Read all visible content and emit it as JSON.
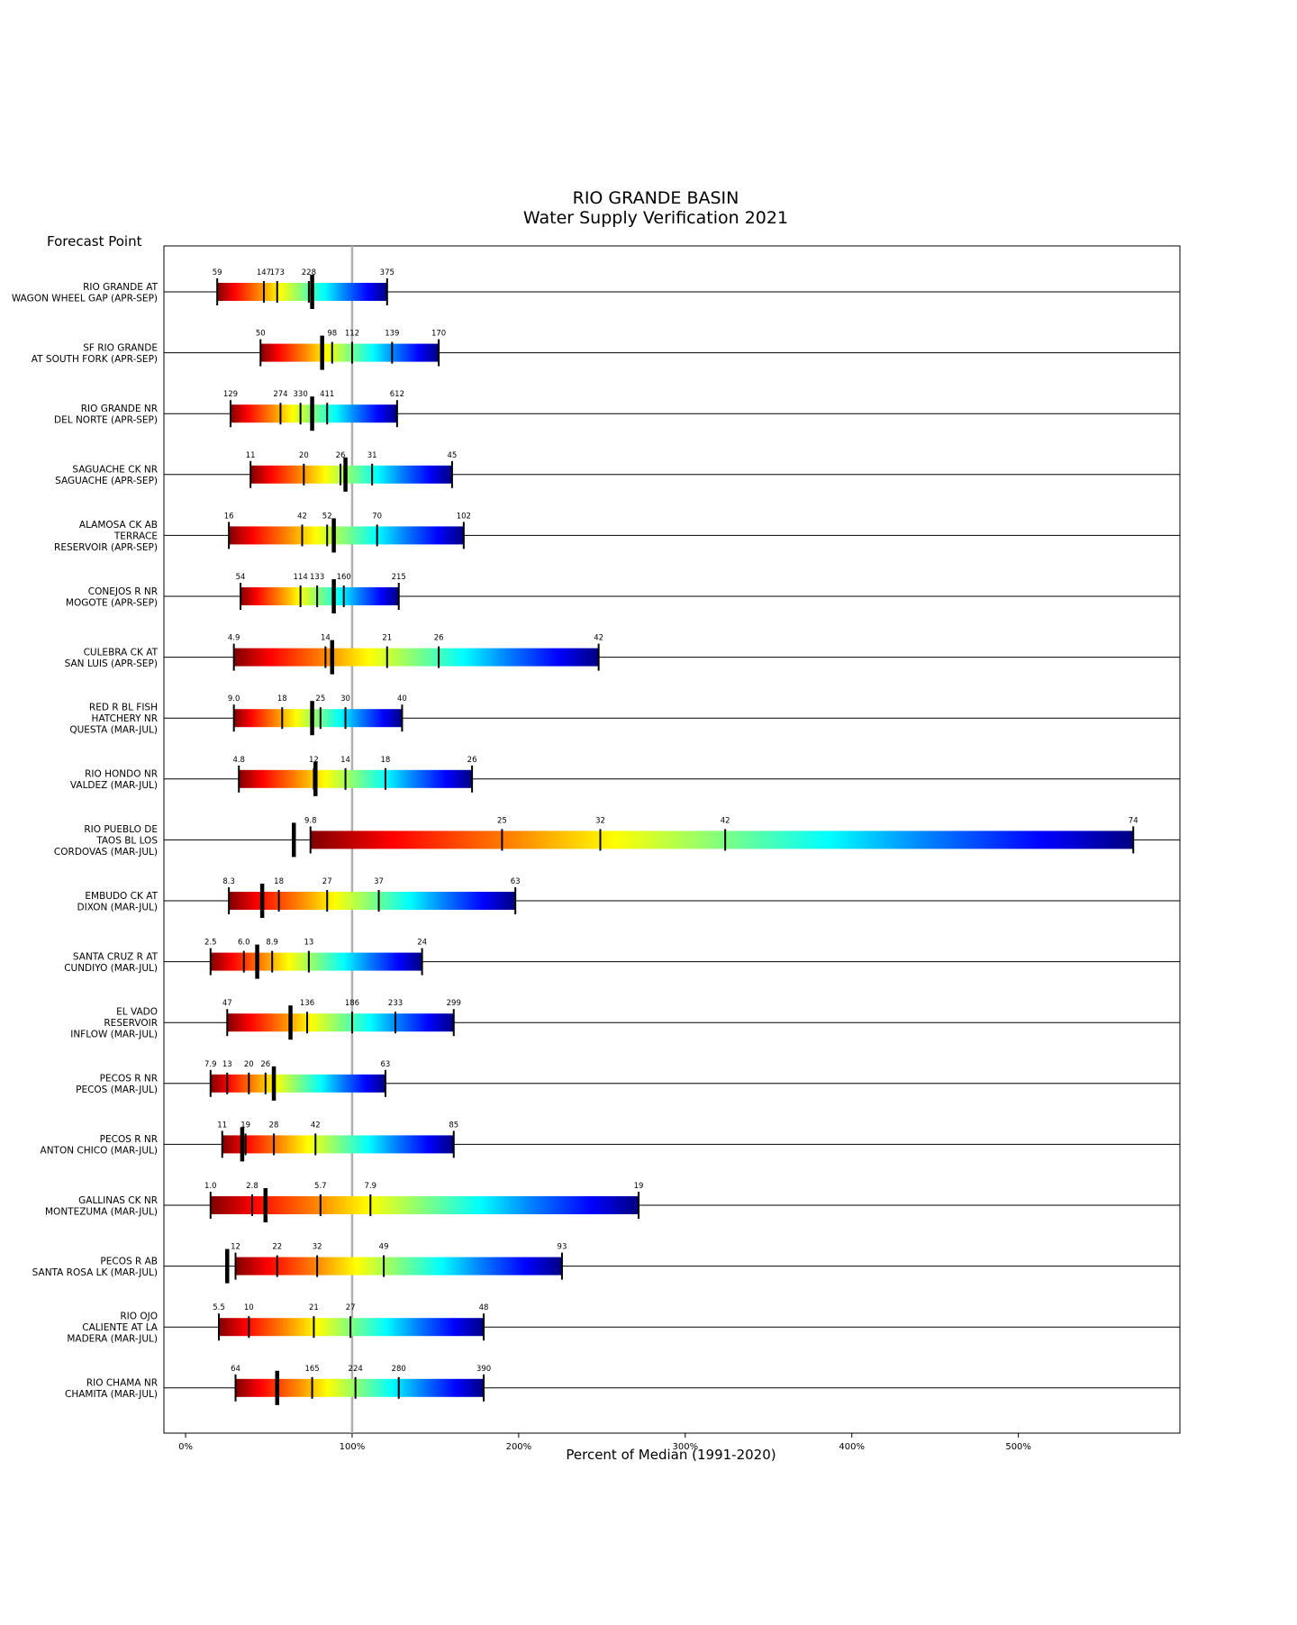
{
  "chart_data": {
    "type": "bar",
    "title": "RIO GRANDE BASIN",
    "subtitle": "Water Supply Verification 2021",
    "xlabel": "Percent of Median (1991-2020)",
    "ylabel": "Forecast Point",
    "xlim": [
      -13,
      597
    ],
    "xticks": [
      0,
      100,
      200,
      300,
      400,
      500
    ],
    "xtick_labels": [
      "0%",
      "100%",
      "200%",
      "300%",
      "400%",
      "500%"
    ],
    "median_line": 100,
    "grid": false,
    "colormap": "jet",
    "series": [
      {
        "labels": [
          "RIO GRANDE AT",
          "WAGON WHEEL GAP (APR-SEP)"
        ],
        "ticks": [
          19,
          47,
          55,
          74,
          121
        ],
        "tick_labels": [
          "59",
          "147",
          "173",
          "228",
          "375"
        ],
        "observed": 76
      },
      {
        "labels": [
          "SF RIO GRANDE",
          "AT SOUTH FORK (APR-SEP)"
        ],
        "ticks": [
          45,
          88,
          100,
          124,
          152
        ],
        "tick_labels": [
          "50",
          "98",
          "112",
          "139",
          "170"
        ],
        "observed": 82
      },
      {
        "labels": [
          "RIO GRANDE NR",
          "DEL NORTE (APR-SEP)"
        ],
        "ticks": [
          27,
          57,
          69,
          85,
          127
        ],
        "tick_labels": [
          "129",
          "274",
          "330",
          "411",
          "612"
        ],
        "observed": 76
      },
      {
        "labels": [
          "SAGUACHE CK NR",
          "SAGUACHE (APR-SEP)"
        ],
        "ticks": [
          39,
          71,
          93,
          112,
          160
        ],
        "tick_labels": [
          "11",
          "20",
          "26",
          "31",
          "45"
        ],
        "observed": 96
      },
      {
        "labels": [
          "ALAMOSA CK AB",
          "TERRACE",
          "RESERVOIR (APR-SEP)"
        ],
        "ticks": [
          26,
          70,
          85,
          115,
          167
        ],
        "tick_labels": [
          "16",
          "42",
          "52",
          "70",
          "102"
        ],
        "observed": 89
      },
      {
        "labels": [
          "CONEJOS R NR",
          "MOGOTE (APR-SEP)"
        ],
        "ticks": [
          33,
          69,
          79,
          95,
          128
        ],
        "tick_labels": [
          "54",
          "114",
          "133",
          "160",
          "215"
        ],
        "observed": 89
      },
      {
        "labels": [
          "CULEBRA CK AT",
          "SAN LUIS (APR-SEP)"
        ],
        "ticks": [
          29,
          84,
          121,
          152,
          248
        ],
        "tick_labels": [
          "4.9",
          "14",
          "21",
          "26",
          "42"
        ],
        "observed": 88
      },
      {
        "labels": [
          "RED R BL FISH",
          "HATCHERY NR",
          "QUESTA (MAR-JUL)"
        ],
        "ticks": [
          29,
          58,
          81,
          96,
          130
        ],
        "tick_labels": [
          "9.0",
          "18",
          "25",
          "30",
          "40"
        ],
        "observed": 76
      },
      {
        "labels": [
          "RIO HONDO NR",
          "VALDEZ (MAR-JUL)"
        ],
        "ticks": [
          32,
          77,
          96,
          120,
          172
        ],
        "tick_labels": [
          "4.8",
          "12",
          "14",
          "18",
          "26"
        ],
        "observed": 78
      },
      {
        "labels": [
          "RIO PUEBLO DE",
          "TAOS BL LOS",
          "CORDOVAS (MAR-JUL)"
        ],
        "ticks": [
          75,
          190,
          249,
          324,
          569
        ],
        "tick_labels": [
          "9.8",
          "25",
          "32",
          "42",
          "74"
        ],
        "observed": 65
      },
      {
        "labels": [
          "EMBUDO CK AT",
          "DIXON (MAR-JUL)"
        ],
        "ticks": [
          26,
          56,
          85,
          116,
          198
        ],
        "tick_labels": [
          "8.3",
          "18",
          "27",
          "37",
          "63"
        ],
        "observed": 46
      },
      {
        "labels": [
          "SANTA CRUZ R AT",
          "CUNDIYO (MAR-JUL)"
        ],
        "ticks": [
          15,
          35,
          52,
          74,
          142
        ],
        "tick_labels": [
          "2.5",
          "6.0",
          "8.9",
          "13",
          "24"
        ],
        "observed": 43
      },
      {
        "labels": [
          "EL VADO",
          "RESERVOIR",
          "INFLOW (MAR-JUL)"
        ],
        "ticks": [
          25,
          73,
          100,
          126,
          161
        ],
        "tick_labels": [
          "47",
          "136",
          "186",
          "233",
          "299"
        ],
        "observed": 63
      },
      {
        "labels": [
          "PECOS R NR",
          "PECOS (MAR-JUL)"
        ],
        "ticks": [
          15,
          25,
          38,
          48,
          120
        ],
        "tick_labels": [
          "7.9",
          "13",
          "20",
          "26",
          "63"
        ],
        "observed": 53
      },
      {
        "labels": [
          "PECOS R NR",
          "ANTON CHICO (MAR-JUL)"
        ],
        "ticks": [
          22,
          36,
          53,
          78,
          161
        ],
        "tick_labels": [
          "11",
          "19",
          "28",
          "42",
          "85"
        ],
        "observed": 34
      },
      {
        "labels": [
          "GALLINAS CK NR",
          "MONTEZUMA (MAR-JUL)"
        ],
        "ticks": [
          15,
          40,
          81,
          111,
          272
        ],
        "tick_labels": [
          "1.0",
          "2.8",
          "5.7",
          "7.9",
          "19"
        ],
        "observed": 48
      },
      {
        "labels": [
          "PECOS R AB",
          "SANTA ROSA LK (MAR-JUL)"
        ],
        "ticks": [
          30,
          55,
          79,
          119,
          226
        ],
        "tick_labels": [
          "12",
          "22",
          "32",
          "49",
          "93"
        ],
        "observed": 25
      },
      {
        "labels": [
          "RIO OJO",
          "CALIENTE AT LA",
          "MADERA (MAR-JUL)"
        ],
        "ticks": [
          20,
          38,
          77,
          99,
          179
        ],
        "tick_labels": [
          "5.5",
          "10",
          "21",
          "27",
          "48"
        ],
        "observed": null
      },
      {
        "labels": [
          "RIO CHAMA NR",
          "CHAMITA (MAR-JUL)"
        ],
        "ticks": [
          30,
          76,
          102,
          128,
          179
        ],
        "tick_labels": [
          "64",
          "165",
          "224",
          "280",
          "390"
        ],
        "observed": 55
      }
    ]
  }
}
